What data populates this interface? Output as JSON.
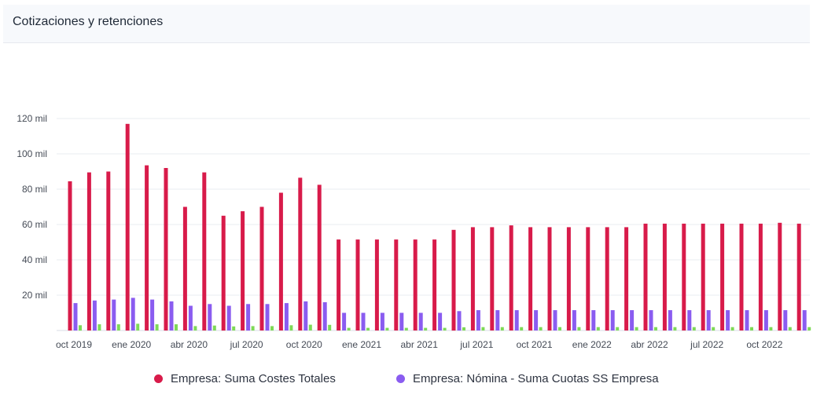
{
  "header": {
    "title": "Cotizaciones y retenciones"
  },
  "colors": {
    "costes": "#d81b4a",
    "cuotas": "#8a5cf0",
    "third": "#7ed957",
    "grid": "#e9ecf1"
  },
  "chart_data": {
    "type": "bar",
    "ylim": [
      0,
      120000
    ],
    "yticks": [
      20000,
      40000,
      60000,
      80000,
      100000,
      120000
    ],
    "ytick_labels": [
      "20 mil",
      "40 mil",
      "60 mil",
      "80 mil",
      "100 mil",
      "120 mil"
    ],
    "categories": [
      "oct 2019",
      "nov 2019",
      "dic 2019",
      "ene 2020",
      "feb 2020",
      "mar 2020",
      "abr 2020",
      "may 2020",
      "jun 2020",
      "jul 2020",
      "ago 2020",
      "sep 2020",
      "oct 2020",
      "nov 2020",
      "dic 2020",
      "ene 2021",
      "feb 2021",
      "mar 2021",
      "abr 2021",
      "may 2021",
      "jun 2021",
      "jul 2021",
      "ago 2021",
      "sep 2021",
      "oct 2021",
      "nov 2021",
      "dic 2021",
      "ene 2022",
      "feb 2022",
      "mar 2022",
      "abr 2022",
      "may 2022",
      "jun 2022",
      "jul 2022",
      "ago 2022",
      "sep 2022",
      "oct 2022",
      "nov 2022",
      "dic 2022"
    ],
    "xtick_labels": [
      {
        "index": 0,
        "label": "oct 2019"
      },
      {
        "index": 3,
        "label": "ene 2020"
      },
      {
        "index": 6,
        "label": "abr 2020"
      },
      {
        "index": 9,
        "label": "jul 2020"
      },
      {
        "index": 12,
        "label": "oct 2020"
      },
      {
        "index": 15,
        "label": "ene 2021"
      },
      {
        "index": 18,
        "label": "abr 2021"
      },
      {
        "index": 21,
        "label": "jul 2021"
      },
      {
        "index": 24,
        "label": "oct 2021"
      },
      {
        "index": 27,
        "label": "ene 2022"
      },
      {
        "index": 30,
        "label": "abr 2022"
      },
      {
        "index": 33,
        "label": "jul 2022"
      },
      {
        "index": 36,
        "label": "oct 2022"
      }
    ],
    "series": [
      {
        "name": "Empresa: Suma Costes Totales",
        "color": "#d81b4a",
        "values": [
          84500,
          89500,
          90000,
          117000,
          93500,
          92000,
          70000,
          89500,
          65000,
          67500,
          70000,
          78000,
          86500,
          82500,
          51500,
          51500,
          51500,
          51500,
          51500,
          51500,
          57000,
          58500,
          58500,
          59500,
          58500,
          58500,
          58500,
          58500,
          58500,
          58500,
          60500,
          60500,
          60500,
          60500,
          60500,
          60500,
          60500,
          61000,
          60500
        ]
      },
      {
        "name": "Empresa: Nómina - Suma Cuotas SS Empresa",
        "color": "#8a5cf0",
        "values": [
          15500,
          17000,
          17500,
          18500,
          17500,
          16500,
          14000,
          15000,
          14000,
          15000,
          15000,
          15500,
          16500,
          16000,
          10000,
          10000,
          10000,
          10000,
          10000,
          10000,
          11000,
          11500,
          11500,
          11500,
          11500,
          11500,
          11500,
          11500,
          11500,
          11500,
          11500,
          11500,
          11500,
          11500,
          11500,
          11500,
          11500,
          11500,
          11500
        ]
      },
      {
        "color": "#7ed957",
        "values": [
          3000,
          3500,
          3500,
          3800,
          3500,
          3500,
          2500,
          2800,
          2300,
          2500,
          2500,
          3000,
          3300,
          3200,
          1500,
          1500,
          1500,
          1500,
          1500,
          1500,
          1800,
          1900,
          1900,
          1900,
          1900,
          1900,
          1900,
          1900,
          1900,
          1900,
          1900,
          1900,
          1900,
          1900,
          1900,
          1900,
          1900,
          1900,
          1900
        ]
      }
    ],
    "legend_position": "bottom",
    "grid": true
  }
}
